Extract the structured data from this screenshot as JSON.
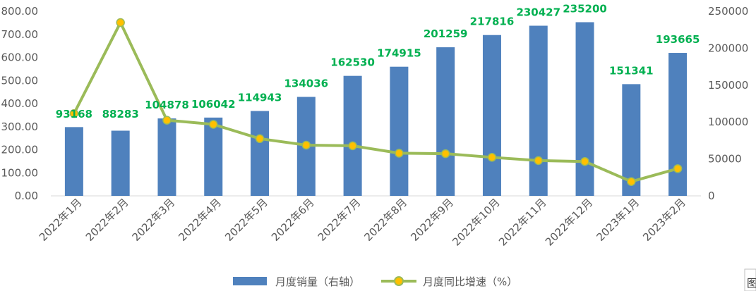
{
  "chart_data": {
    "type": "bar+line",
    "categories": [
      "2022年1月",
      "2022年2月",
      "2022年3月",
      "2022年4月",
      "2022年5月",
      "2022年6月",
      "2022年7月",
      "2022年8月",
      "2022年9月",
      "2022年10月",
      "2022年11月",
      "2022年12月",
      "2023年1月",
      "2023年2月"
    ],
    "series": [
      {
        "name": "月度销量（右轴）",
        "type": "bar",
        "axis": "right",
        "color": "#4F81BD",
        "values": [
          93168,
          88283,
          104878,
          106042,
          114943,
          134036,
          162530,
          174915,
          201259,
          217816,
          230427,
          235200,
          151341,
          193665
        ],
        "data_labels": [
          "93168",
          "88283",
          "104878",
          "106042",
          "114943",
          "134036",
          "162530",
          "174915",
          "201259",
          "217816",
          "230427",
          "235200",
          "151341",
          "193665"
        ],
        "label_color": "#00B050"
      },
      {
        "name": "月度同比增速（%）",
        "type": "line",
        "axis": "left",
        "color": "#9BBB59",
        "marker_color": "#FFC000",
        "values": [
          357,
          751,
          328,
          310,
          248,
          220,
          217,
          185,
          183,
          167,
          153,
          149,
          62,
          118
        ]
      }
    ],
    "y_left": {
      "ylim": [
        0,
        800
      ],
      "ticks": [
        "0.00",
        "100.00",
        "200.00",
        "300.00",
        "400.00",
        "500.00",
        "600.00",
        "700.00",
        "800.00"
      ]
    },
    "y_right": {
      "ylim": [
        0,
        250000
      ],
      "ticks": [
        "0",
        "50000",
        "100000",
        "150000",
        "200000",
        "250000"
      ]
    },
    "legend_position": "bottom",
    "grid": false
  },
  "corner_text": "图"
}
